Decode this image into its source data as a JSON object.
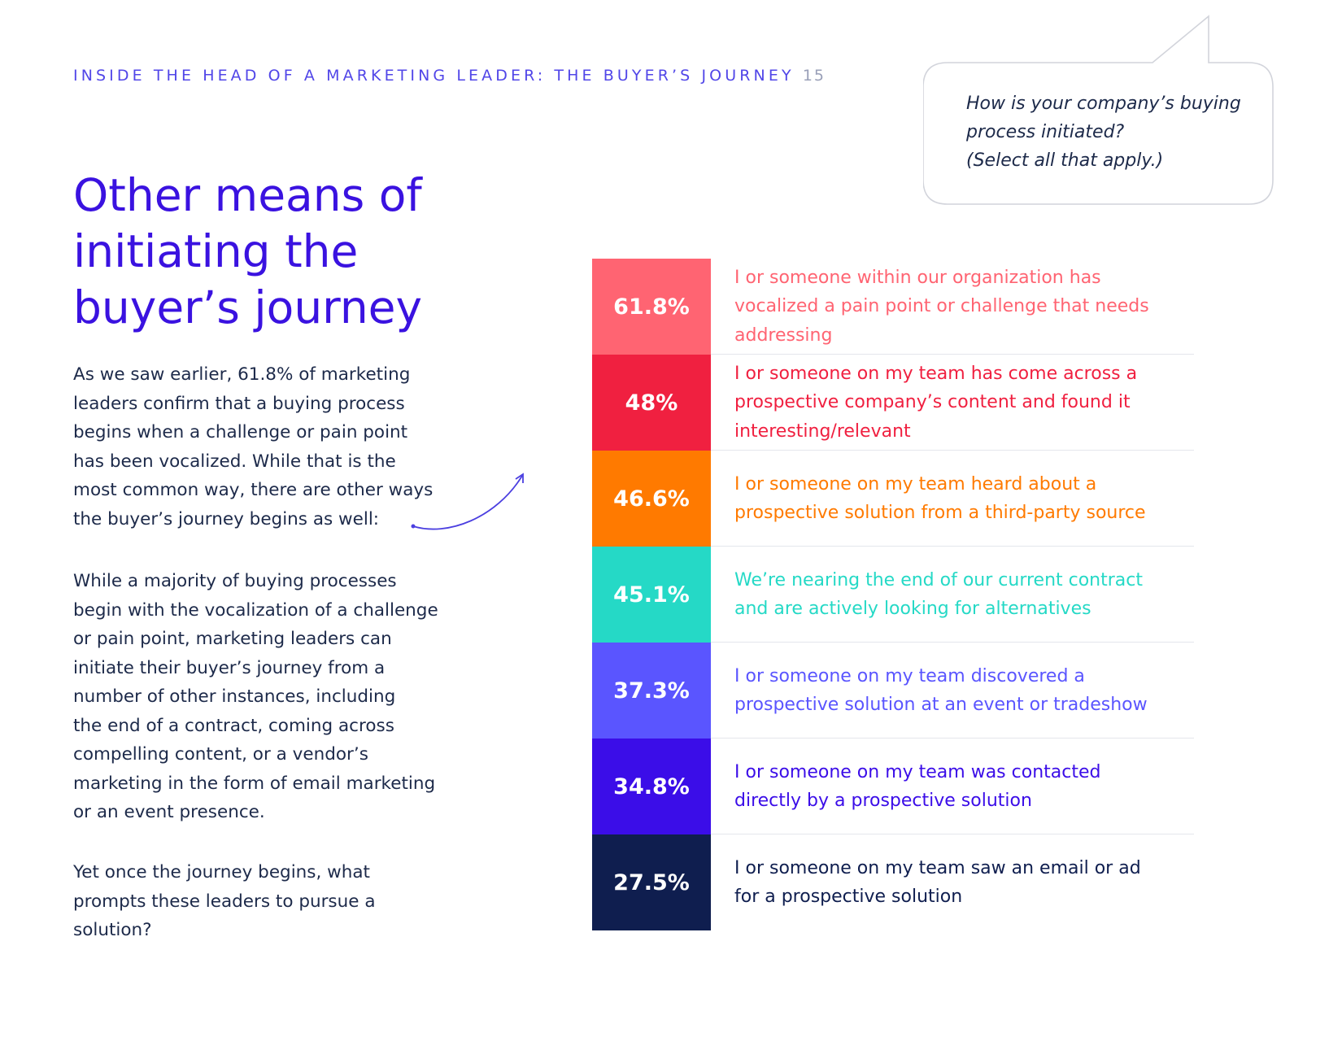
{
  "header": {
    "title": "INSIDE THE HEAD OF A MARKETING LEADER: THE BUYER’S JOURNEY",
    "page_number": "15"
  },
  "question": {
    "lines": [
      "How is your company’s buying",
      "process initiated?",
      "(Select all that apply.)"
    ]
  },
  "heading": {
    "lines": [
      "Other means of",
      "initiating the",
      "buyer’s journey"
    ]
  },
  "body": {
    "p1": [
      "As we saw earlier, 61.8% of marketing",
      "leaders confirm that a buying process",
      "begins when a challenge or pain point",
      "has been vocalized. While that is the",
      "most common way, there are other ways",
      "the buyer’s journey begins as well:"
    ],
    "p2": [
      "While a majority of buying processes",
      "begin with the vocalization of a challenge",
      "or pain point, marketing leaders can",
      "initiate their buyer’s journey from a",
      "number of other instances, including",
      "the end of a contract, coming across",
      "compelling content, or a vendor’s",
      "marketing in the form of email marketing",
      "or an event presence."
    ],
    "p3": [
      "Yet once the journey begins, what",
      "prompts these leaders to pursue a",
      "solution?"
    ]
  },
  "chart_data": {
    "type": "bar",
    "title": "How is your company’s buying process initiated? (Select all that apply.)",
    "unit": "%",
    "series": [
      {
        "value": 61.8,
        "value_label": "61.8%",
        "color": "#ff6472",
        "label_lines": [
          "I or someone within our organization has",
          "vocalized a pain point or challenge that needs",
          "addressing"
        ]
      },
      {
        "value": 48,
        "value_label": "48%",
        "color": "#f02040",
        "label_lines": [
          "I or someone on my team has come across a",
          "prospective company’s content and found it",
          "interesting/relevant"
        ]
      },
      {
        "value": 46.6,
        "value_label": "46.6%",
        "color": "#ff7a00",
        "label_lines": [
          "I or someone on my team heard about a",
          "prospective solution from a third-party source"
        ]
      },
      {
        "value": 45.1,
        "value_label": "45.1%",
        "color": "#25d9c6",
        "label_lines": [
          "We’re nearing the end of our current contract",
          "and are actively looking for alternatives"
        ]
      },
      {
        "value": 37.3,
        "value_label": "37.3%",
        "color": "#5a55ff",
        "label_lines": [
          "I or someone on my team discovered a",
          "prospective solution at an event or tradeshow"
        ]
      },
      {
        "value": 34.8,
        "value_label": "34.8%",
        "color": "#3b0de8",
        "label_lines": [
          "I or someone on my team was contacted",
          "directly by a prospective solution"
        ]
      },
      {
        "value": 27.5,
        "value_label": "27.5%",
        "color": "#0f1e4f",
        "label_lines": [
          "I or someone on my team saw an email or ad",
          "for a prospective solution"
        ]
      }
    ]
  }
}
